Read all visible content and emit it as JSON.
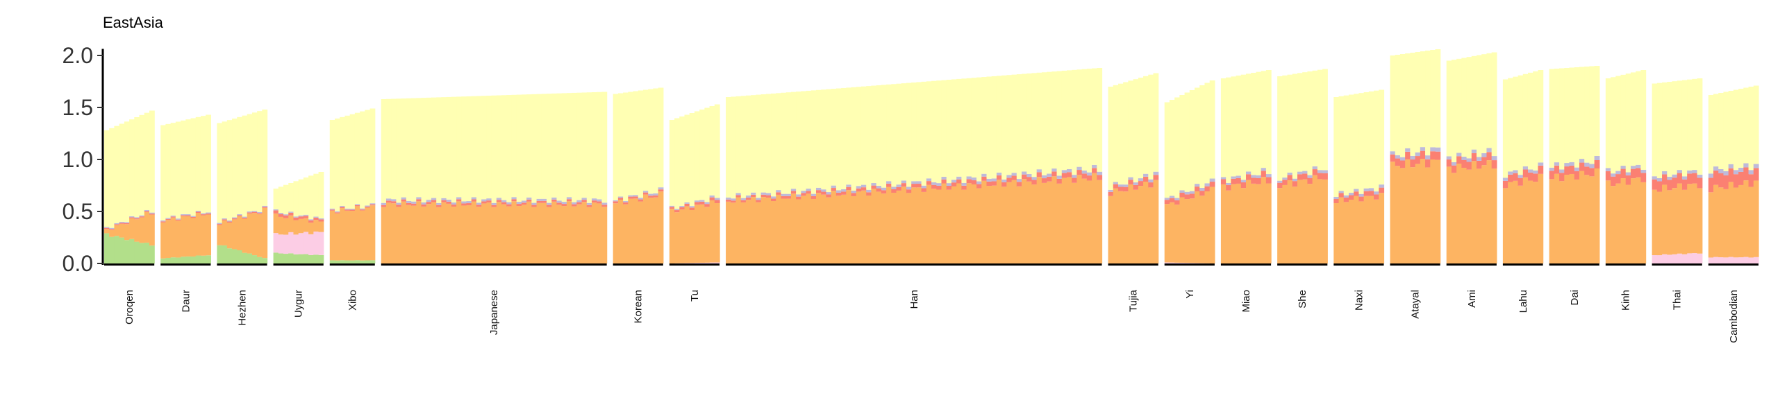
{
  "chart_data": {
    "type": "bar",
    "stacked": true,
    "title": "EastAsia",
    "xlabel": "",
    "ylabel": "",
    "ylim": [
      0,
      2.05
    ],
    "yticks": [
      "0.0",
      "0.5",
      "1.0",
      "1.5",
      "2.0"
    ],
    "ytick_values": [
      0,
      0.5,
      1.0,
      1.5,
      2.0
    ],
    "legend": "none",
    "component_colors": {
      "green": "#b2df8a",
      "pink": "#fccde5",
      "orange": "#fdb462",
      "red": "#fb8072",
      "lavender": "#bebada",
      "yellow": "#ffffb3"
    },
    "groups": [
      {
        "name": "Oroqen",
        "n": 10,
        "total": [
          1.28,
          1.47
        ],
        "green": [
          0.28,
          0.18
        ],
        "pink": [
          0.0,
          0.0
        ],
        "orange": [
          0.04,
          0.31
        ],
        "red": [
          0.01,
          0.01
        ],
        "lavender": [
          0.01,
          0.01
        ]
      },
      {
        "name": "Daur",
        "n": 10,
        "total": [
          1.33,
          1.43
        ],
        "green": [
          0.05,
          0.08
        ],
        "pink": [
          0.0,
          0.0
        ],
        "orange": [
          0.36,
          0.4
        ],
        "red": [
          0.01,
          0.01
        ],
        "lavender": [
          0.01,
          0.01
        ]
      },
      {
        "name": "Hezhen",
        "n": 10,
        "total": [
          1.35,
          1.48
        ],
        "green": [
          0.18,
          0.05
        ],
        "pink": [
          0.0,
          0.0
        ],
        "orange": [
          0.2,
          0.46
        ],
        "red": [
          0.01,
          0.01
        ],
        "lavender": [
          0.01,
          0.01
        ]
      },
      {
        "name": "Uygur",
        "n": 10,
        "total": [
          0.72,
          0.88
        ],
        "green": [
          0.1,
          0.08
        ],
        "pink": [
          0.18,
          0.22
        ],
        "orange": [
          0.18,
          0.1
        ],
        "red": [
          0.03,
          0.02
        ],
        "lavender": [
          0.01,
          0.01
        ]
      },
      {
        "name": "Xibo",
        "n": 9,
        "total": [
          1.38,
          1.49
        ],
        "green": [
          0.03,
          0.03
        ],
        "pink": [
          0.0,
          0.0
        ],
        "orange": [
          0.47,
          0.51
        ],
        "red": [
          0.01,
          0.01
        ],
        "lavender": [
          0.01,
          0.01
        ]
      },
      {
        "name": "Japanese",
        "n": 45,
        "total": [
          1.58,
          1.65
        ],
        "green": [
          0.0,
          0.0
        ],
        "pink": [
          0.0,
          0.0
        ],
        "orange": [
          0.57,
          0.57
        ],
        "red": [
          0.02,
          0.02
        ],
        "lavender": [
          0.02,
          0.02
        ]
      },
      {
        "name": "Korean",
        "n": 10,
        "total": [
          1.63,
          1.69
        ],
        "green": [
          0.0,
          0.0
        ],
        "pink": [
          0.0,
          0.0
        ],
        "orange": [
          0.58,
          0.66
        ],
        "red": [
          0.02,
          0.02
        ],
        "lavender": [
          0.01,
          0.02
        ]
      },
      {
        "name": "Tu",
        "n": 10,
        "total": [
          1.38,
          1.53
        ],
        "green": [
          0.0,
          0.0
        ],
        "pink": [
          0.0,
          0.01
        ],
        "orange": [
          0.5,
          0.58
        ],
        "red": [
          0.02,
          0.03
        ],
        "lavender": [
          0.01,
          0.02
        ]
      },
      {
        "name": "Han",
        "n": 75,
        "total": [
          1.6,
          1.88
        ],
        "green": [
          0.0,
          0.0
        ],
        "pink": [
          0.0,
          0.0
        ],
        "orange": [
          0.6,
          0.83
        ],
        "red": [
          0.02,
          0.05
        ],
        "lavender": [
          0.02,
          0.03
        ]
      },
      {
        "name": "Tujia",
        "n": 10,
        "total": [
          1.7,
          1.83
        ],
        "green": [
          0.0,
          0.0
        ],
        "pink": [
          0.0,
          0.0
        ],
        "orange": [
          0.68,
          0.78
        ],
        "red": [
          0.04,
          0.05
        ],
        "lavender": [
          0.02,
          0.03
        ]
      },
      {
        "name": "Yi",
        "n": 10,
        "total": [
          1.55,
          1.76
        ],
        "green": [
          0.0,
          0.0
        ],
        "pink": [
          0.01,
          0.0
        ],
        "orange": [
          0.55,
          0.71
        ],
        "red": [
          0.04,
          0.05
        ],
        "lavender": [
          0.02,
          0.03
        ]
      },
      {
        "name": "Miao",
        "n": 10,
        "total": [
          1.78,
          1.86
        ],
        "green": [
          0.0,
          0.0
        ],
        "pink": [
          0.0,
          0.0
        ],
        "orange": [
          0.73,
          0.8
        ],
        "red": [
          0.05,
          0.06
        ],
        "lavender": [
          0.02,
          0.03
        ]
      },
      {
        "name": "She",
        "n": 10,
        "total": [
          1.8,
          1.87
        ],
        "green": [
          0.0,
          0.0
        ],
        "pink": [
          0.0,
          0.0
        ],
        "orange": [
          0.75,
          0.83
        ],
        "red": [
          0.05,
          0.06
        ],
        "lavender": [
          0.02,
          0.03
        ]
      },
      {
        "name": "Naxi",
        "n": 10,
        "total": [
          1.6,
          1.67
        ],
        "green": [
          0.0,
          0.0
        ],
        "pink": [
          0.0,
          0.0
        ],
        "orange": [
          0.6,
          0.65
        ],
        "red": [
          0.04,
          0.05
        ],
        "lavender": [
          0.02,
          0.03
        ]
      },
      {
        "name": "Atayal",
        "n": 10,
        "total": [
          2.0,
          2.06
        ],
        "green": [
          0.0,
          0.0
        ],
        "pink": [
          0.0,
          0.0
        ],
        "orange": [
          0.94,
          0.98
        ],
        "red": [
          0.07,
          0.08
        ],
        "lavender": [
          0.03,
          0.04
        ]
      },
      {
        "name": "Ami",
        "n": 10,
        "total": [
          1.95,
          2.03
        ],
        "green": [
          0.0,
          0.0
        ],
        "pink": [
          0.0,
          0.0
        ],
        "orange": [
          0.91,
          0.96
        ],
        "red": [
          0.07,
          0.08
        ],
        "lavender": [
          0.03,
          0.04
        ]
      },
      {
        "name": "Lahu",
        "n": 8,
        "total": [
          1.77,
          1.86
        ],
        "green": [
          0.0,
          0.0
        ],
        "pink": [
          0.0,
          0.0
        ],
        "orange": [
          0.76,
          0.82
        ],
        "red": [
          0.07,
          0.08
        ],
        "lavender": [
          0.03,
          0.03
        ]
      },
      {
        "name": "Dai",
        "n": 10,
        "total": [
          1.87,
          1.9
        ],
        "green": [
          0.0,
          0.0
        ],
        "pink": [
          0.0,
          0.0
        ],
        "orange": [
          0.82,
          0.87
        ],
        "red": [
          0.08,
          0.08
        ],
        "lavender": [
          0.03,
          0.04
        ]
      },
      {
        "name": "Kinh",
        "n": 8,
        "total": [
          1.78,
          1.86
        ],
        "green": [
          0.0,
          0.0
        ],
        "pink": [
          0.0,
          0.0
        ],
        "orange": [
          0.76,
          0.82
        ],
        "red": [
          0.09,
          0.09
        ],
        "lavender": [
          0.03,
          0.03
        ]
      },
      {
        "name": "Thai",
        "n": 10,
        "total": [
          1.73,
          1.78
        ],
        "green": [
          0.0,
          0.0
        ],
        "pink": [
          0.08,
          0.1
        ],
        "orange": [
          0.63,
          0.66
        ],
        "red": [
          0.1,
          0.1
        ],
        "lavender": [
          0.03,
          0.03
        ]
      },
      {
        "name": "Cambodian",
        "n": 10,
        "total": [
          1.62,
          1.71
        ],
        "green": [
          0.0,
          0.0
        ],
        "pink": [
          0.06,
          0.06
        ],
        "orange": [
          0.66,
          0.72
        ],
        "red": [
          0.14,
          0.12
        ],
        "lavender": [
          0.04,
          0.04
        ]
      }
    ]
  }
}
